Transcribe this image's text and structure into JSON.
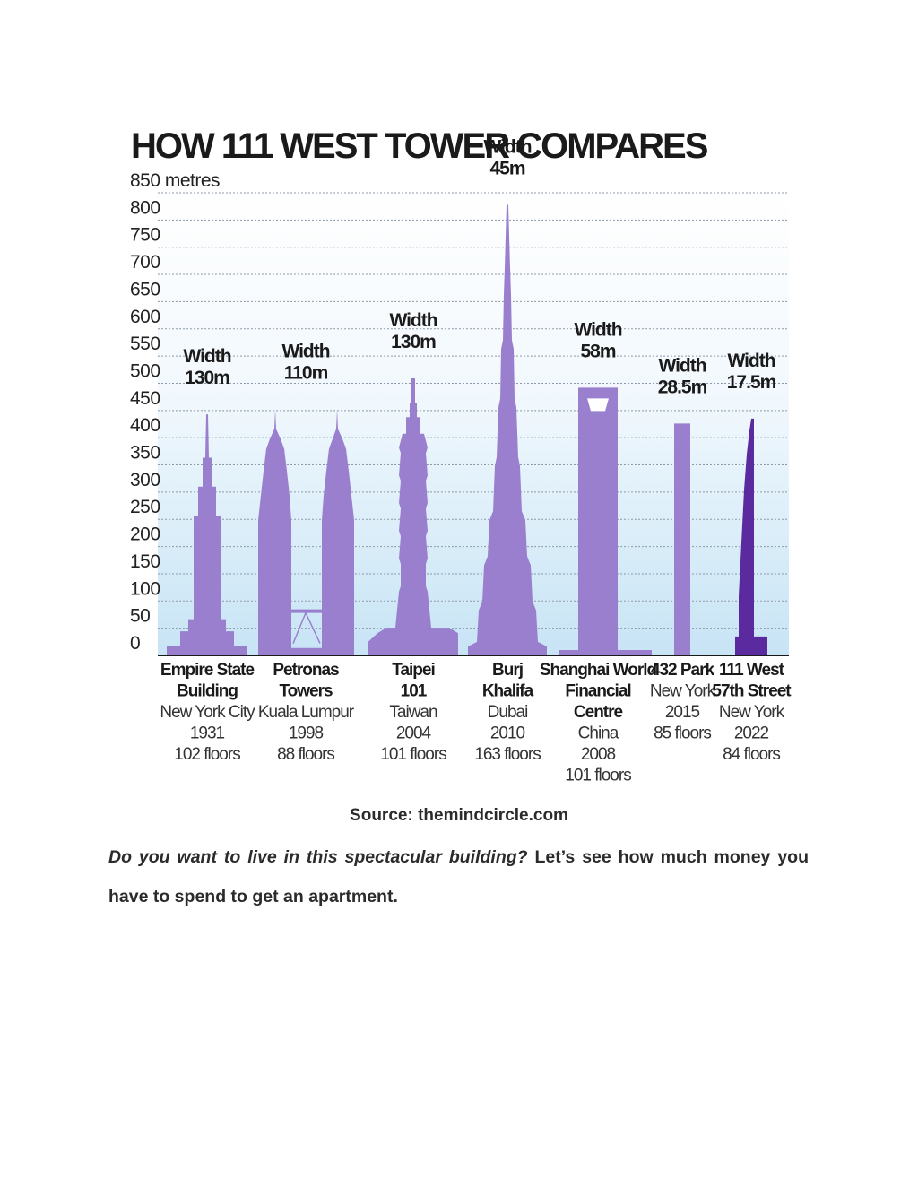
{
  "chart_data": {
    "type": "bar",
    "title": "HOW 111 WEST TOWER COMPARES",
    "y_unit_label": "850 metres",
    "ylim": [
      0,
      850
    ],
    "y_ticks": [
      0,
      50,
      100,
      150,
      200,
      250,
      300,
      350,
      400,
      450,
      500,
      550,
      600,
      650,
      700,
      750,
      800,
      850
    ],
    "y_tick_labels": [
      "0",
      "50",
      "100",
      "150",
      "200",
      "250",
      "300",
      "350",
      "400",
      "450",
      "500",
      "550",
      "600",
      "650",
      "700",
      "750",
      "800",
      "850 metres"
    ],
    "grid": true,
    "colors": {
      "bar": "#9b7fcf",
      "highlight": "#5a2a9e",
      "background_top": "#ffffff",
      "background_bottom": "#c7e4f5",
      "window": "#ffffff"
    },
    "categories": [
      "Empire State Building",
      "Petronas Towers",
      "Taipei 101",
      "Burj Khalifa",
      "Shanghai World Financial Centre",
      "432 Park",
      "111 West 57th Street"
    ],
    "values": [
      443,
      452,
      509,
      828,
      492,
      426,
      435
    ],
    "buildings": [
      {
        "shape": "empire",
        "height": 443,
        "width_label": [
          "Width",
          "130m"
        ],
        "name_lines": [
          "Empire State",
          "Building"
        ],
        "info_lines": [
          "New York City",
          "1931",
          "102 floors"
        ],
        "highlight": false
      },
      {
        "shape": "petronas",
        "height": 452,
        "width_label": [
          "Width",
          "110m"
        ],
        "name_lines": [
          "Petronas",
          "Towers"
        ],
        "info_lines": [
          "Kuala Lumpur",
          "1998",
          "88 floors"
        ],
        "highlight": false
      },
      {
        "shape": "taipei",
        "height": 509,
        "width_label": [
          "Width",
          "130m"
        ],
        "name_lines": [
          "Taipei",
          "101"
        ],
        "info_lines": [
          "Taiwan",
          "2004",
          "101 floors"
        ],
        "highlight": false
      },
      {
        "shape": "burj",
        "height": 828,
        "width_label": [
          "Width",
          "45m"
        ],
        "name_lines": [
          "Burj",
          "Khalifa"
        ],
        "info_lines": [
          "Dubai",
          "2010",
          "163 floors"
        ],
        "highlight": false
      },
      {
        "shape": "shanghai",
        "height": 492,
        "width_label": [
          "Width",
          "58m"
        ],
        "name_lines": [
          "Shanghai World",
          "Financial",
          "Centre"
        ],
        "info_lines": [
          "China",
          "2008",
          "101 floors"
        ],
        "highlight": false
      },
      {
        "shape": "park432",
        "height": 426,
        "width_label": [
          "Width",
          "28.5m"
        ],
        "name_lines": [
          "432 Park"
        ],
        "info_lines": [
          "New York",
          "2015",
          "85 floors"
        ],
        "highlight": false
      },
      {
        "shape": "west57",
        "height": 435,
        "width_label": [
          "Width",
          "17.5m"
        ],
        "name_lines": [
          "111 West",
          "57th Street"
        ],
        "info_lines": [
          "New York",
          "2022",
          "84 floors"
        ],
        "highlight": true
      }
    ]
  },
  "source": "Source: themindcircle.com",
  "paragraph": {
    "question": "Do you want to live in this spectacular building?",
    "rest": " Let’s see how much money you have to spend to get an apartment."
  }
}
